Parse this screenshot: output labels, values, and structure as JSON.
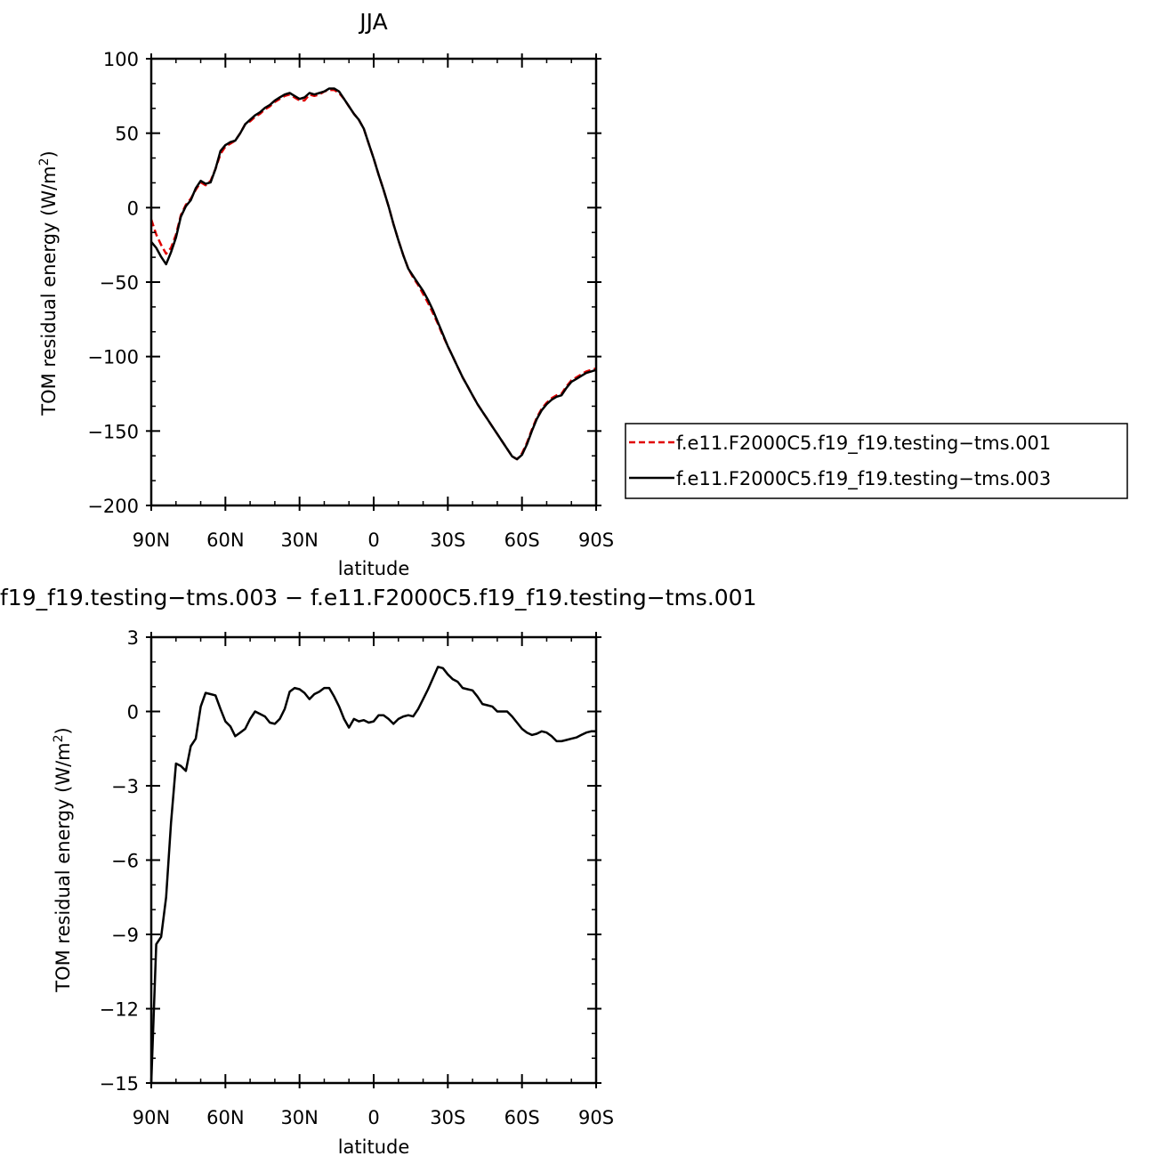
{
  "chart_data": [
    {
      "type": "line",
      "title": "JJA",
      "xlabel": "latitude",
      "ylabel": "TOM residual energy (W/m²)",
      "ylabel_main": "TOM residual energy (W/m",
      "ylabel_sup": "2",
      "ylabel_end": ")",
      "xlim": [
        90,
        -90
      ],
      "ylim": [
        -200,
        100
      ],
      "xticks": [
        90,
        60,
        30,
        0,
        -30,
        -60,
        -90
      ],
      "xtick_labels": [
        "90N",
        "60N",
        "30N",
        "0",
        "30S",
        "60S",
        "90S"
      ],
      "yticks": [
        -200,
        -150,
        -100,
        -50,
        0,
        50,
        100
      ],
      "ytick_labels": [
        "−200",
        "−150",
        "−100",
        "−50",
        "0",
        "50",
        "100"
      ],
      "legend_position": "right",
      "series": [
        {
          "name": "f.e11.F2000C5.f19_f19.testing−tms.001",
          "color": "#e00000",
          "dash": "dashed",
          "x": [
            90,
            88,
            86,
            84,
            82,
            80,
            78,
            76,
            74,
            72,
            70,
            68,
            66,
            64,
            62,
            60,
            58,
            56,
            54,
            52,
            50,
            48,
            46,
            44,
            42,
            40,
            38,
            36,
            34,
            32,
            30,
            28,
            26,
            24,
            22,
            20,
            18,
            16,
            14,
            12,
            10,
            8,
            6,
            4,
            2,
            0,
            -2,
            -4,
            -6,
            -8,
            -10,
            -12,
            -14,
            -16,
            -18,
            -20,
            -22,
            -24,
            -26,
            -28,
            -30,
            -32,
            -34,
            -36,
            -38,
            -40,
            -42,
            -44,
            -46,
            -48,
            -50,
            -52,
            -54,
            -56,
            -58,
            -60,
            -62,
            -64,
            -66,
            -68,
            -70,
            -72,
            -74,
            -76,
            -78,
            -80,
            -82,
            -84,
            -86,
            -88,
            -90
          ],
          "y": [
            -8,
            -18,
            -25,
            -31,
            -27,
            -18,
            -5,
            2,
            6,
            12,
            17,
            15,
            18,
            26,
            36,
            41,
            43,
            45,
            50,
            56,
            58,
            61,
            63,
            66,
            68,
            71,
            73,
            75,
            76,
            74,
            72,
            72,
            76,
            75,
            76,
            78,
            79,
            79,
            77,
            73,
            68,
            63,
            59,
            53,
            43,
            33,
            22,
            12,
            1,
            -11,
            -22,
            -32,
            -41,
            -47,
            -52,
            -58,
            -64,
            -71,
            -78,
            -86,
            -93,
            -100,
            -107,
            -114,
            -120,
            -126,
            -132,
            -137,
            -142,
            -147,
            -152,
            -157,
            -162,
            -167,
            -169,
            -165,
            -158,
            -149,
            -141,
            -135,
            -131,
            -128,
            -126,
            -125,
            -120,
            -116,
            -114,
            -112,
            -110,
            -109,
            -108
          ]
        },
        {
          "name": "f.e11.F2000C5.f19_f19.testing−tms.003",
          "color": "#000000",
          "dash": "solid",
          "x": [
            90,
            88,
            86,
            84,
            82,
            80,
            78,
            76,
            74,
            72,
            70,
            68,
            66,
            64,
            62,
            60,
            58,
            56,
            54,
            52,
            50,
            48,
            46,
            44,
            42,
            40,
            38,
            36,
            34,
            32,
            30,
            28,
            26,
            24,
            22,
            20,
            18,
            16,
            14,
            12,
            10,
            8,
            6,
            4,
            2,
            0,
            -2,
            -4,
            -6,
            -8,
            -10,
            -12,
            -14,
            -16,
            -18,
            -20,
            -22,
            -24,
            -26,
            -28,
            -30,
            -32,
            -34,
            -36,
            -38,
            -40,
            -42,
            -44,
            -46,
            -48,
            -50,
            -52,
            -54,
            -56,
            -58,
            -60,
            -62,
            -64,
            -66,
            -68,
            -70,
            -72,
            -74,
            -76,
            -78,
            -80,
            -82,
            -84,
            -86,
            -88,
            -90
          ],
          "y": [
            -23,
            -27,
            -33,
            -38,
            -30,
            -20,
            -6,
            1,
            5,
            13,
            18,
            16,
            17,
            26,
            38,
            42,
            44,
            45,
            50,
            56,
            59,
            62,
            64,
            67,
            69,
            72,
            74,
            76,
            77,
            75,
            73,
            74,
            77,
            76,
            77,
            78,
            80,
            80,
            78,
            73,
            68,
            63,
            59,
            53,
            43,
            33,
            22,
            12,
            1,
            -11,
            -22,
            -32,
            -41,
            -46,
            -51,
            -56,
            -62,
            -69,
            -77,
            -85,
            -93,
            -100,
            -107,
            -114,
            -120,
            -126,
            -132,
            -137,
            -142,
            -147,
            -152,
            -157,
            -162,
            -167,
            -169,
            -166,
            -159,
            -150,
            -142,
            -136,
            -132,
            -129,
            -127,
            -126,
            -121,
            -117,
            -115,
            -113,
            -111,
            -110,
            -109
          ]
        }
      ]
    },
    {
      "type": "line",
      "title": "f19_f19.testing−tms.003 − f.e11.F2000C5.f19_f19.testing−tms.001",
      "xlabel": "latitude",
      "ylabel": "TOM residual energy (W/m²)",
      "ylabel_main": "TOM residual energy (W/m",
      "ylabel_sup": "2",
      "ylabel_end": ")",
      "xlim": [
        90,
        -90
      ],
      "ylim": [
        -15,
        3
      ],
      "xticks": [
        90,
        60,
        30,
        0,
        -30,
        -60,
        -90
      ],
      "xtick_labels": [
        "90N",
        "60N",
        "30N",
        "0",
        "30S",
        "60S",
        "90S"
      ],
      "yticks": [
        -15,
        -12,
        -9,
        -6,
        -3,
        0,
        3
      ],
      "ytick_labels": [
        "−15",
        "−12",
        "−9",
        "−6",
        "−3",
        "0",
        "3"
      ],
      "series": [
        {
          "color": "#000000",
          "dash": "solid",
          "x": [
            90,
            88,
            86,
            84,
            82,
            80,
            78,
            76,
            74,
            72,
            70,
            68,
            66,
            64,
            62,
            60,
            58,
            56,
            54,
            52,
            50,
            48,
            46,
            44,
            42,
            40,
            38,
            36,
            34,
            32,
            30,
            28,
            26,
            24,
            22,
            20,
            18,
            16,
            14,
            12,
            10,
            8,
            6,
            4,
            2,
            0,
            -2,
            -4,
            -6,
            -8,
            -10,
            -12,
            -14,
            -16,
            -18,
            -20,
            -22,
            -24,
            -26,
            -28,
            -30,
            -32,
            -34,
            -36,
            -38,
            -40,
            -42,
            -44,
            -46,
            -48,
            -50,
            -52,
            -54,
            -56,
            -58,
            -60,
            -62,
            -64,
            -66,
            -68,
            -70,
            -72,
            -74,
            -76,
            -78,
            -80,
            -82,
            -84,
            -86,
            -88,
            -90
          ],
          "y": [
            -15,
            -9.4,
            -9.1,
            -7.5,
            -4.5,
            -2.1,
            -2.2,
            -2.4,
            -1.4,
            -1.1,
            0.2,
            0.75,
            0.7,
            0.65,
            0.1,
            -0.4,
            -0.6,
            -1.0,
            -0.85,
            -0.7,
            -0.3,
            0.0,
            -0.1,
            -0.2,
            -0.45,
            -0.5,
            -0.3,
            0.1,
            0.8,
            0.95,
            0.9,
            0.75,
            0.5,
            0.7,
            0.8,
            0.95,
            0.95,
            0.6,
            0.2,
            -0.3,
            -0.65,
            -0.3,
            -0.4,
            -0.35,
            -0.45,
            -0.4,
            -0.15,
            -0.15,
            -0.3,
            -0.5,
            -0.3,
            -0.2,
            -0.15,
            -0.2,
            0.1,
            0.5,
            0.9,
            1.35,
            1.8,
            1.75,
            1.5,
            1.3,
            1.2,
            0.95,
            0.9,
            0.85,
            0.6,
            0.3,
            0.25,
            0.2,
            0.0,
            0.0,
            0.0,
            -0.2,
            -0.45,
            -0.7,
            -0.85,
            -0.95,
            -0.9,
            -0.8,
            -0.85,
            -1.0,
            -1.2,
            -1.2,
            -1.15,
            -1.1,
            -1.05,
            -0.95,
            -0.85,
            -0.8,
            -0.8
          ]
        }
      ]
    }
  ]
}
